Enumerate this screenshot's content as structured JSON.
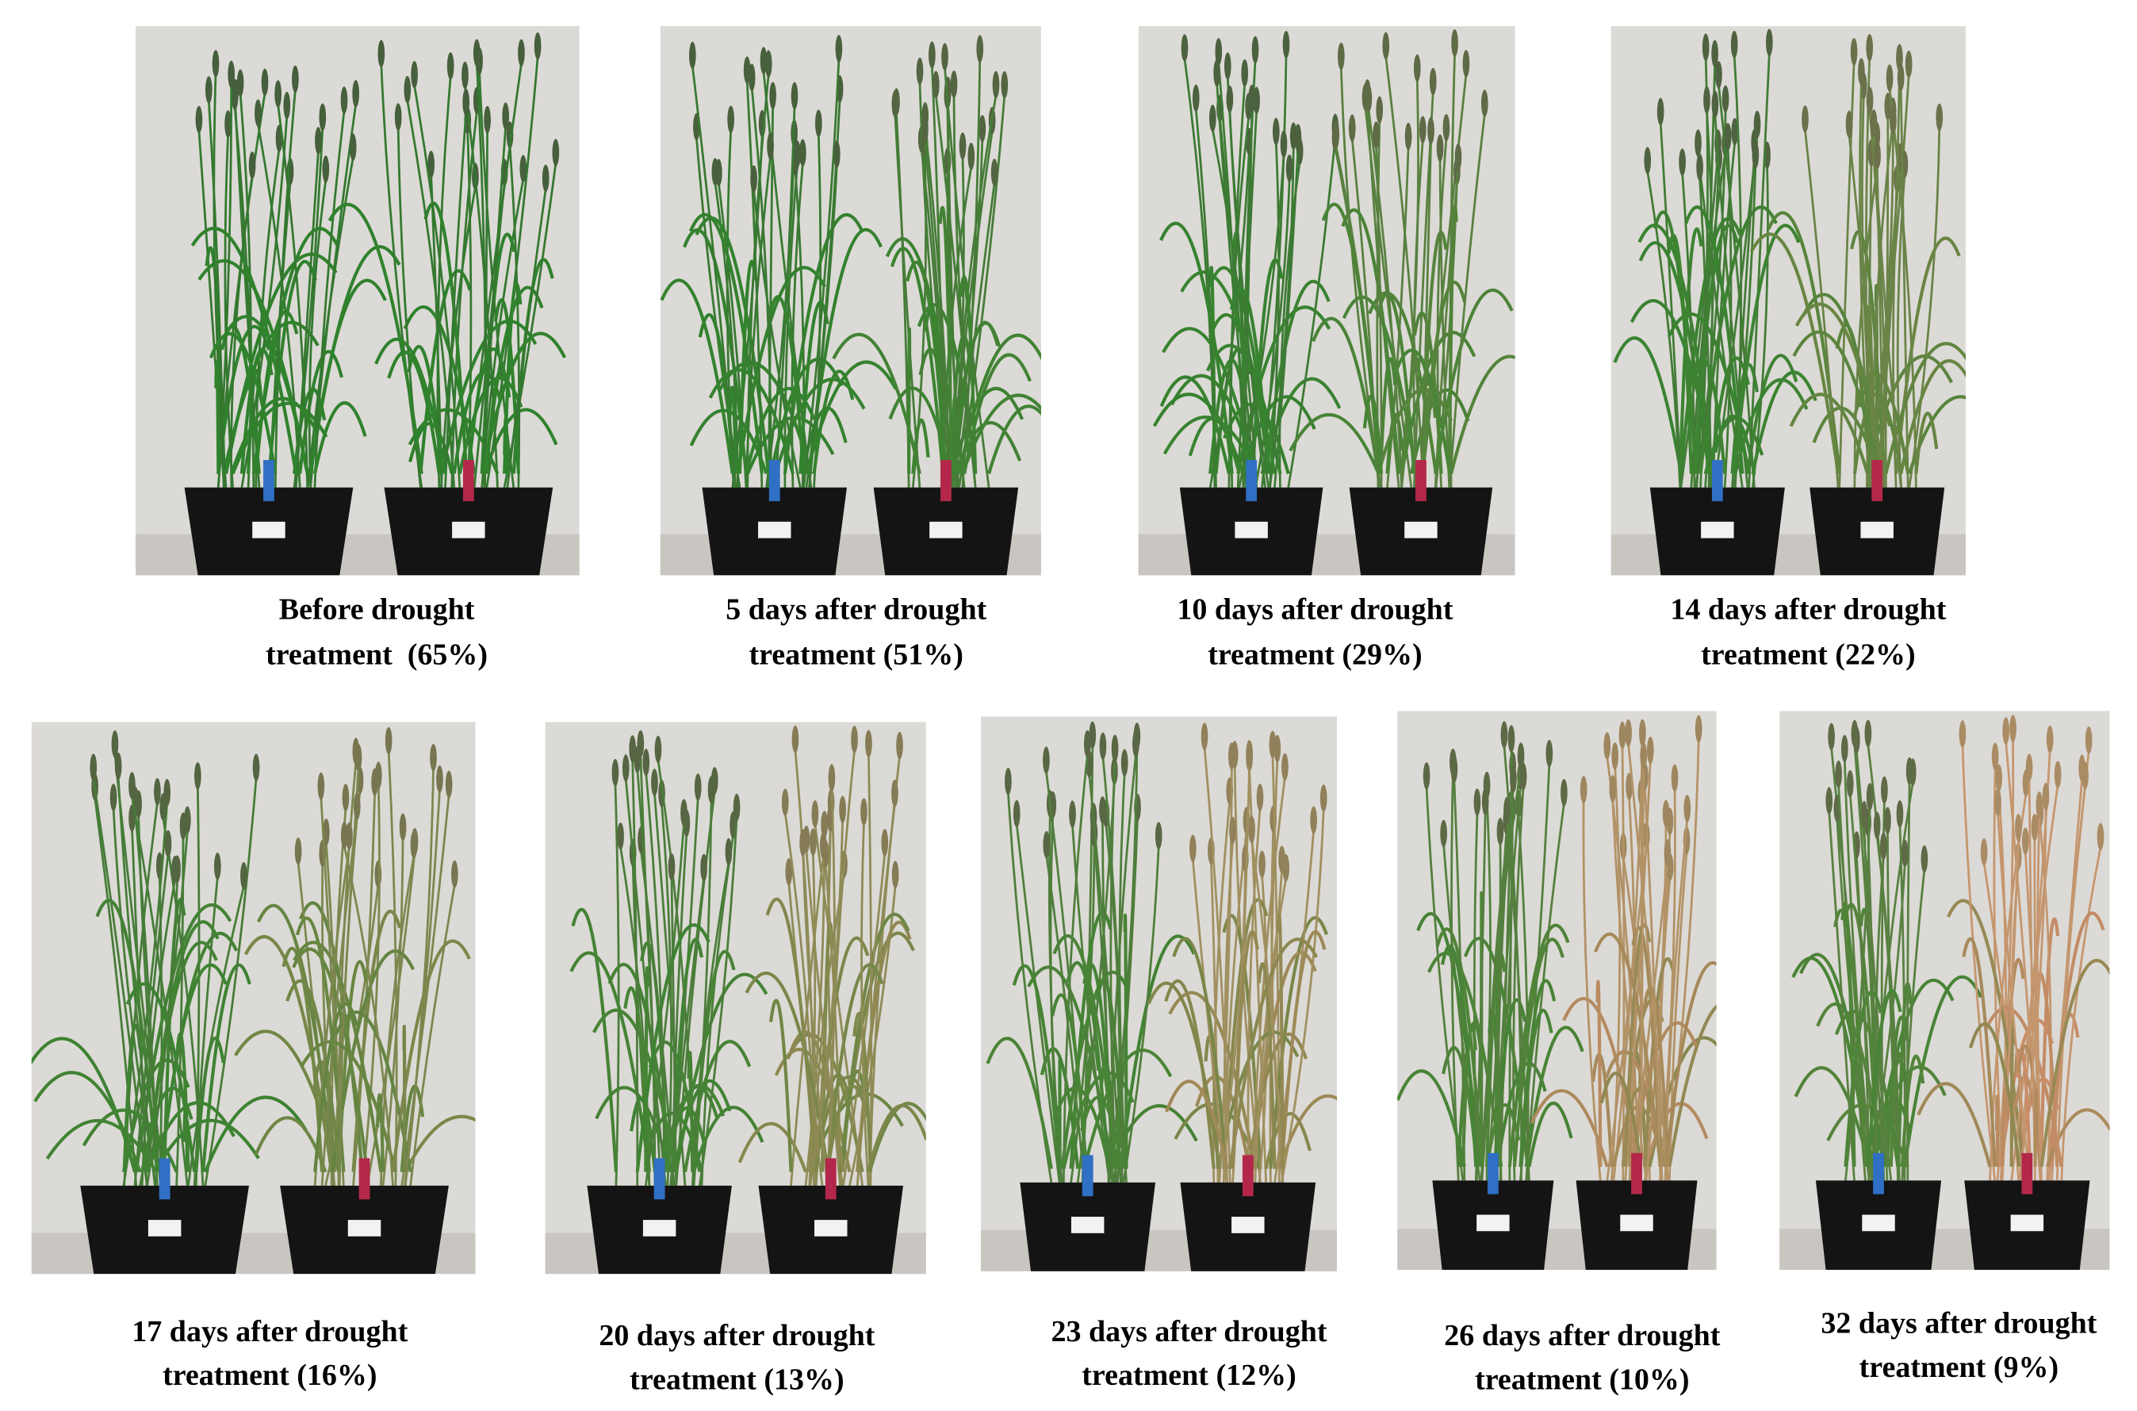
{
  "panels": [
    {
      "caption": [
        "Before drought",
        "treatment  (65%)"
      ]
    },
    {
      "caption": [
        "5 days after drought",
        "treatment (51%)"
      ]
    },
    {
      "caption": [
        "10 days after drought",
        "treatment (29%)"
      ]
    },
    {
      "caption": [
        "14 days after drought",
        "treatment (22%)"
      ]
    },
    {
      "caption": [
        "17 days after drought",
        "treatment (16%)"
      ]
    },
    {
      "caption": [
        "20 days after drought",
        "treatment (13%)"
      ]
    },
    {
      "caption": [
        "23 days after drought",
        "treatment (12%)"
      ]
    },
    {
      "caption": [
        "26 days after drought",
        "treatment (10%)"
      ]
    },
    {
      "caption": [
        "32 days after drought",
        "treatment (9%)"
      ]
    }
  ]
}
